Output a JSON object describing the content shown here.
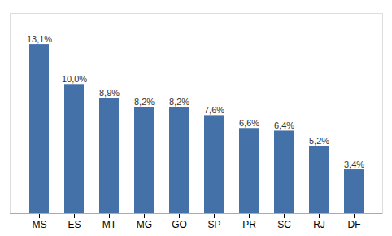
{
  "chart_data": {
    "type": "bar",
    "categories": [
      "MS",
      "ES",
      "MT",
      "MG",
      "GO",
      "SP",
      "PR",
      "SC",
      "RJ",
      "DF"
    ],
    "values": [
      13.1,
      10.0,
      8.9,
      8.2,
      8.2,
      7.6,
      6.6,
      6.4,
      5.2,
      3.4
    ],
    "value_labels": [
      "13,1%",
      "10,0%",
      "8,9%",
      "8,2%",
      "8,2%",
      "7,6%",
      "6,6%",
      "6,4%",
      "5,2%",
      "3,4%"
    ],
    "color": "#4472a8",
    "ylim": [
      0,
      15.5
    ],
    "data_labels": true,
    "tick_labels": "x",
    "grid": false
  }
}
